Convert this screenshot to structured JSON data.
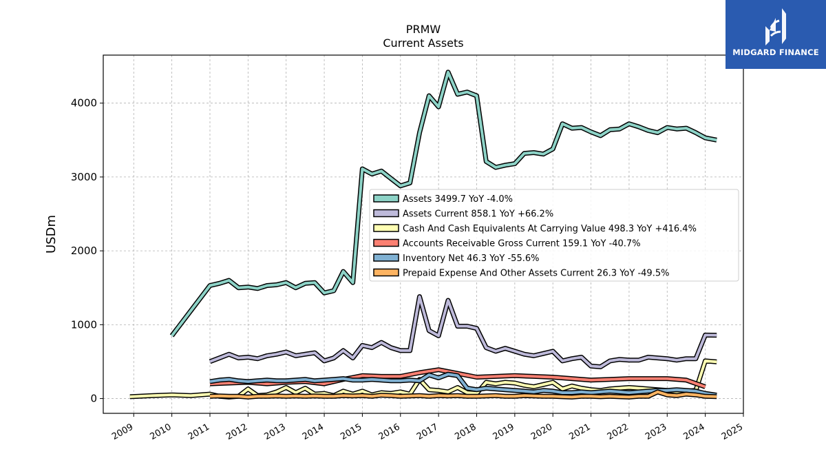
{
  "brand": {
    "name": "MIDGARD FINANCE",
    "color": "#2a5bb0"
  },
  "chart_data": {
    "type": "line",
    "title": "PRMW",
    "subtitle": "Current  Assets",
    "xlabel": "",
    "ylabel": "USDm",
    "xlim": [
      2008.2,
      2025.0
    ],
    "ylim": [
      -200,
      4650
    ],
    "xticks": [
      "2009",
      "2010",
      "2011",
      "2012",
      "2013",
      "2014",
      "2015",
      "2016",
      "2017",
      "2018",
      "2019",
      "2020",
      "2021",
      "2022",
      "2023",
      "2024",
      "2025"
    ],
    "yticks": [
      0,
      1000,
      2000,
      3000,
      4000
    ],
    "grid": true,
    "legend_position": "center-right",
    "series": [
      {
        "name": "Assets  3499.7 YoY -4.0%",
        "color": "#8dd3c7",
        "x": [
          2010.0,
          2011.0,
          2011.25,
          2011.5,
          2011.75,
          2012.0,
          2012.25,
          2012.5,
          2012.75,
          2013.0,
          2013.25,
          2013.5,
          2013.75,
          2014.0,
          2014.25,
          2014.5,
          2014.75,
          2015.0,
          2015.25,
          2015.5,
          2015.75,
          2016.0,
          2016.25,
          2016.5,
          2016.75,
          2017.0,
          2017.25,
          2017.5,
          2017.75,
          2018.0,
          2018.25,
          2018.5,
          2018.75,
          2019.0,
          2019.25,
          2019.5,
          2019.75,
          2020.0,
          2020.25,
          2020.5,
          2020.75,
          2021.0,
          2021.25,
          2021.5,
          2021.75,
          2022.0,
          2022.25,
          2022.5,
          2022.75,
          2023.0,
          2023.25,
          2023.5,
          2023.75,
          2024.0,
          2024.3
        ],
        "y": [
          850,
          1530,
          1560,
          1600,
          1500,
          1510,
          1490,
          1530,
          1540,
          1570,
          1500,
          1560,
          1570,
          1430,
          1460,
          1720,
          1570,
          3110,
          3040,
          3080,
          2980,
          2880,
          2920,
          3600,
          4100,
          3950,
          4420,
          4120,
          4150,
          4100,
          3210,
          3130,
          3160,
          3180,
          3320,
          3330,
          3310,
          3380,
          3720,
          3660,
          3670,
          3610,
          3560,
          3640,
          3650,
          3720,
          3680,
          3630,
          3600,
          3670,
          3650,
          3660,
          3600,
          3530,
          3500
        ]
      },
      {
        "name": "Assets Current  858.1 YoY +66.2%",
        "color": "#bebada",
        "x": [
          2011.0,
          2011.25,
          2011.5,
          2011.75,
          2012.0,
          2012.25,
          2012.5,
          2012.75,
          2013.0,
          2013.25,
          2013.5,
          2013.75,
          2014.0,
          2014.25,
          2014.5,
          2014.75,
          2015.0,
          2015.25,
          2015.5,
          2015.75,
          2016.0,
          2016.25,
          2016.5,
          2016.75,
          2017.0,
          2017.25,
          2017.5,
          2017.75,
          2018.0,
          2018.25,
          2018.5,
          2018.75,
          2019.0,
          2019.25,
          2019.5,
          2019.75,
          2020.0,
          2020.25,
          2020.5,
          2020.75,
          2021.0,
          2021.25,
          2021.5,
          2021.75,
          2022.0,
          2022.25,
          2022.5,
          2022.75,
          2023.0,
          2023.25,
          2023.5,
          2023.75,
          2024.0,
          2024.3
        ],
        "y": [
          500,
          550,
          600,
          550,
          560,
          540,
          580,
          600,
          630,
          580,
          600,
          620,
          510,
          550,
          650,
          550,
          720,
          690,
          760,
          690,
          650,
          650,
          1380,
          920,
          850,
          1330,
          980,
          980,
          950,
          690,
          640,
          680,
          640,
          600,
          580,
          610,
          640,
          510,
          540,
          560,
          440,
          430,
          510,
          530,
          520,
          520,
          560,
          550,
          540,
          520,
          540,
          540,
          860,
          858
        ]
      },
      {
        "name": "Cash And Cash Equivalents At Carrying Value  498.3 YoY +416.4%",
        "color": "#ffffb3",
        "x": [
          2008.9,
          2009.5,
          2010.0,
          2010.5,
          2011.0,
          2011.25,
          2011.5,
          2011.75,
          2012.0,
          2012.25,
          2012.5,
          2012.75,
          2013.0,
          2013.25,
          2013.5,
          2013.75,
          2014.0,
          2014.25,
          2014.5,
          2014.75,
          2015.0,
          2015.25,
          2015.5,
          2015.75,
          2016.0,
          2016.25,
          2016.5,
          2016.75,
          2017.0,
          2017.25,
          2017.5,
          2017.75,
          2018.0,
          2018.25,
          2018.5,
          2018.75,
          2019.0,
          2019.25,
          2019.5,
          2019.75,
          2020.0,
          2020.25,
          2020.5,
          2020.75,
          2021.0,
          2021.25,
          2021.5,
          2021.75,
          2022.0,
          2022.25,
          2022.5,
          2022.75,
          2023.0,
          2023.25,
          2023.5,
          2023.75,
          2024.0,
          2024.3
        ],
        "y": [
          25,
          40,
          50,
          40,
          60,
          30,
          20,
          30,
          130,
          40,
          50,
          90,
          150,
          80,
          140,
          60,
          70,
          40,
          100,
          60,
          100,
          50,
          80,
          70,
          90,
          60,
          260,
          120,
          110,
          90,
          150,
          80,
          70,
          220,
          200,
          220,
          210,
          180,
          160,
          190,
          220,
          130,
          170,
          140,
          120,
          110,
          130,
          140,
          150,
          140,
          130,
          120,
          110,
          90,
          100,
          110,
          510,
          498
        ]
      },
      {
        "name": "Accounts Receivable Gross Current  159.1 YoY -40.7%",
        "color": "#fb8072",
        "x": [
          2011.0,
          2011.5,
          2012.0,
          2012.5,
          2013.0,
          2013.5,
          2014.0,
          2014.5,
          2015.0,
          2015.5,
          2016.0,
          2016.5,
          2017.0,
          2017.5,
          2018.0,
          2018.5,
          2019.0,
          2019.5,
          2020.0,
          2020.5,
          2021.0,
          2021.5,
          2022.0,
          2022.5,
          2023.0,
          2023.5,
          2024.0
        ],
        "y": [
          200,
          210,
          220,
          200,
          220,
          230,
          200,
          260,
          310,
          300,
          300,
          350,
          390,
          340,
          290,
          300,
          310,
          300,
          290,
          270,
          250,
          260,
          270,
          270,
          270,
          250,
          159
        ]
      },
      {
        "name": "Inventory Net  46.3 YoY -55.6%",
        "color": "#80b1d3",
        "x": [
          2011.0,
          2011.25,
          2011.5,
          2011.75,
          2012.0,
          2012.25,
          2012.5,
          2012.75,
          2013.0,
          2013.25,
          2013.5,
          2013.75,
          2014.0,
          2014.25,
          2014.5,
          2014.75,
          2015.0,
          2015.25,
          2015.5,
          2015.75,
          2016.0,
          2016.25,
          2016.5,
          2016.75,
          2017.0,
          2017.25,
          2017.5,
          2017.75,
          2018.0,
          2018.25,
          2018.5,
          2018.75,
          2019.0,
          2019.25,
          2019.5,
          2019.75,
          2020.0,
          2020.25,
          2020.5,
          2020.75,
          2021.0,
          2021.25,
          2021.5,
          2021.75,
          2022.0,
          2022.25,
          2022.5,
          2022.75,
          2023.0,
          2023.25,
          2023.5,
          2023.75,
          2024.0,
          2024.3
        ],
        "y": [
          230,
          250,
          260,
          240,
          230,
          240,
          250,
          240,
          240,
          250,
          260,
          240,
          250,
          260,
          270,
          250,
          250,
          260,
          250,
          240,
          240,
          250,
          240,
          320,
          280,
          330,
          310,
          140,
          120,
          140,
          130,
          120,
          110,
          100,
          90,
          110,
          100,
          80,
          80,
          90,
          80,
          90,
          100,
          90,
          80,
          90,
          100,
          110,
          110,
          120,
          110,
          100,
          70,
          46
        ]
      },
      {
        "name": "Prepaid Expense And Other Assets Current  26.3 YoY -49.5%",
        "color": "#fdb462",
        "x": [
          2011.0,
          2011.25,
          2011.5,
          2011.75,
          2012.0,
          2012.25,
          2012.5,
          2012.75,
          2013.0,
          2013.25,
          2013.5,
          2013.75,
          2014.0,
          2014.25,
          2014.5,
          2014.75,
          2015.0,
          2015.25,
          2015.5,
          2015.75,
          2016.0,
          2016.25,
          2016.5,
          2016.75,
          2017.0,
          2017.25,
          2017.5,
          2017.75,
          2018.0,
          2018.25,
          2018.5,
          2018.75,
          2019.0,
          2019.25,
          2019.5,
          2019.75,
          2020.0,
          2020.25,
          2020.5,
          2020.75,
          2021.0,
          2021.25,
          2021.5,
          2021.75,
          2022.0,
          2022.25,
          2022.5,
          2022.75,
          2023.0,
          2023.25,
          2023.5,
          2023.75,
          2024.0,
          2024.3
        ],
        "y": [
          30,
          35,
          30,
          30,
          20,
          30,
          30,
          35,
          30,
          35,
          30,
          35,
          30,
          30,
          40,
          35,
          40,
          30,
          45,
          40,
          30,
          35,
          40,
          30,
          40,
          35,
          40,
          30,
          30,
          35,
          40,
          30,
          30,
          40,
          35,
          30,
          30,
          25,
          20,
          30,
          30,
          25,
          30,
          25,
          20,
          30,
          30,
          90,
          50,
          40,
          60,
          50,
          30,
          26
        ]
      }
    ]
  }
}
